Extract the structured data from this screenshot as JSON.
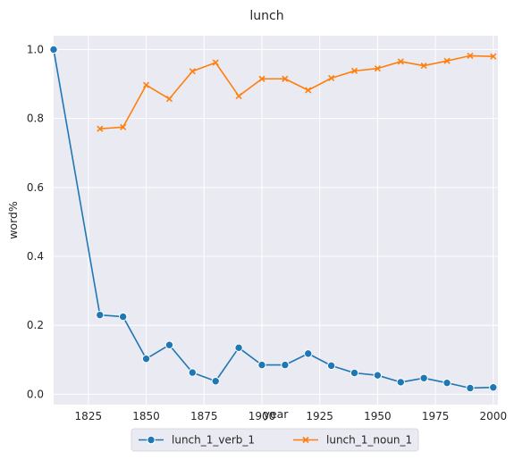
{
  "chart_data": {
    "type": "line",
    "title": "lunch",
    "xlabel": "year",
    "ylabel": "word%",
    "xlim": [
      1810,
      2002
    ],
    "ylim": [
      -0.03,
      1.04
    ],
    "x_ticks": [
      1825,
      1850,
      1875,
      1900,
      1925,
      1950,
      1975,
      2000
    ],
    "y_ticks": [
      0.0,
      0.2,
      0.4,
      0.6,
      0.8,
      1.0
    ],
    "grid": true,
    "legend": "bottom-center",
    "series": [
      {
        "name": "lunch_1_verb_1",
        "color": "#1f77b4",
        "marker": "circle",
        "x": [
          1810,
          1830,
          1840,
          1850,
          1860,
          1870,
          1880,
          1890,
          1900,
          1910,
          1920,
          1930,
          1940,
          1950,
          1960,
          1970,
          1980,
          1990,
          2000
        ],
        "y": [
          1.0,
          0.23,
          0.225,
          0.103,
          0.143,
          0.063,
          0.038,
          0.135,
          0.085,
          0.085,
          0.118,
          0.083,
          0.062,
          0.055,
          0.035,
          0.047,
          0.033,
          0.018,
          0.02
        ]
      },
      {
        "name": "lunch_1_noun_1",
        "color": "#ff7f0e",
        "marker": "x",
        "x": [
          1830,
          1840,
          1850,
          1860,
          1870,
          1880,
          1890,
          1900,
          1910,
          1920,
          1930,
          1940,
          1950,
          1960,
          1970,
          1980,
          1990,
          2000
        ],
        "y": [
          0.77,
          0.775,
          0.897,
          0.857,
          0.937,
          0.962,
          0.865,
          0.915,
          0.915,
          0.882,
          0.917,
          0.938,
          0.945,
          0.965,
          0.953,
          0.967,
          0.982,
          0.98
        ]
      }
    ]
  }
}
